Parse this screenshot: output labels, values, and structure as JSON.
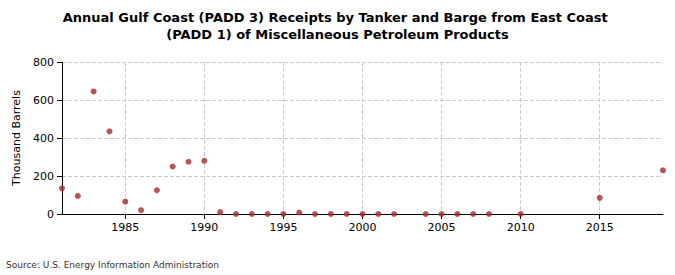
{
  "chart_data": {
    "type": "scatter",
    "title": "Annual Gulf Coast (PADD 3) Receipts by Tanker and Barge from East Coast (PADD 1) of Miscellaneous Petroleum Products",
    "y_label": "Thousand Barrels",
    "source": "Source: U.S. Energy Information Administration",
    "x": [
      1981,
      1982,
      1983,
      1984,
      1985,
      1986,
      1987,
      1988,
      1989,
      1990,
      1991,
      1992,
      1993,
      1994,
      1995,
      1996,
      1997,
      1998,
      1999,
      2000,
      2001,
      2002,
      2004,
      2005,
      2006,
      2007,
      2008,
      2010,
      2015,
      2019
    ],
    "values": [
      135,
      95,
      645,
      435,
      65,
      20,
      125,
      250,
      275,
      280,
      10,
      0,
      0,
      0,
      0,
      8,
      0,
      0,
      0,
      0,
      0,
      0,
      0,
      0,
      0,
      0,
      0,
      0,
      85,
      230
    ],
    "color": "#a52a2a",
    "marker": "circle",
    "xlim": [
      1981,
      2019
    ],
    "xticks": [
      1985,
      1990,
      1995,
      2000,
      2005,
      2010,
      2015
    ],
    "ylim": [
      0,
      800
    ],
    "yticks": [
      0,
      200,
      400,
      600,
      800
    ],
    "grid": true
  }
}
